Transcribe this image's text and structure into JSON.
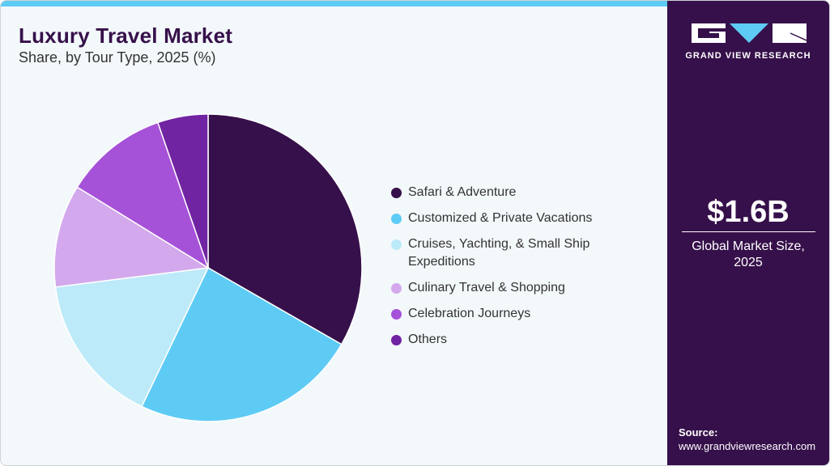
{
  "header": {
    "title": "Luxury Travel Market",
    "subtitle": "Share, by Tour Type, 2025 (%)"
  },
  "colors": {
    "accent_bar": "#5ecbf5",
    "sidebar_bg": "#36104a",
    "card_bg": "#f3f8fb"
  },
  "legend": {
    "items": [
      {
        "label": "Safari & Adventure",
        "color": "#36104a"
      },
      {
        "label": "Customized & Private Vacations",
        "color": "#5ecbf5"
      },
      {
        "label": "Cruises, Yachting, & Small Ship Expeditions",
        "color": "#bdeaf9"
      },
      {
        "label": "Culinary Travel & Shopping",
        "color": "#d3a8ec"
      },
      {
        "label": "Celebration Journeys",
        "color": "#a652d8"
      },
      {
        "label": "Others",
        "color": "#7124a2"
      }
    ]
  },
  "sidebar": {
    "logo_text": "GRAND VIEW RESEARCH",
    "market_size": "$1.6B",
    "market_label_line1": "Global Market Size,",
    "market_label_line2": "2025",
    "source_heading": "Source:",
    "source_url": "www.grandviewresearch.com"
  },
  "chart_data": {
    "type": "pie",
    "title": "Luxury Travel Market",
    "subtitle": "Share, by Tour Type, 2025 (%)",
    "categories": [
      "Safari & Adventure",
      "Customized & Private Vacations",
      "Cruises, Yachting, & Small Ship Expeditions",
      "Culinary Travel & Shopping",
      "Celebration Journeys",
      "Others"
    ],
    "values": [
      33.3,
      23.8,
      15.9,
      10.8,
      10.9,
      5.3
    ],
    "colors": [
      "#36104a",
      "#5ecbf5",
      "#bdeaf9",
      "#d3a8ec",
      "#a652d8",
      "#7124a2"
    ],
    "start_angle": "12 o'clock, clockwise",
    "legend_position": "right"
  }
}
